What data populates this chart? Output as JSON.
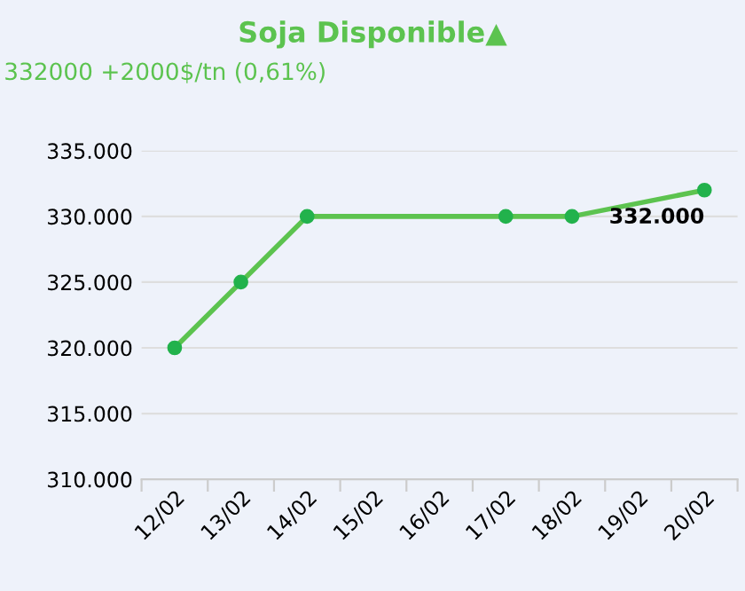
{
  "chart_data": {
    "type": "line",
    "title": "Soja Disponible▲",
    "subtitle": "332000 +2000$/tn (0,61%)",
    "categories": [
      "12/02",
      "13/02",
      "14/02",
      "15/02",
      "16/02",
      "17/02",
      "18/02",
      "19/02",
      "20/02"
    ],
    "series": [
      {
        "color": "#5cc34f",
        "values": [
          320000,
          325000,
          330000,
          null,
          null,
          330000,
          330000,
          null,
          332000
        ],
        "value_labels": [
          null,
          null,
          null,
          null,
          null,
          null,
          null,
          null,
          "332.000"
        ]
      }
    ],
    "ylim": [
      310000,
      335000
    ],
    "yticks": [
      {
        "value": 310000,
        "label": "310.000"
      },
      {
        "value": 315000,
        "label": "315.000"
      },
      {
        "value": 320000,
        "label": "320.000"
      },
      {
        "value": 325000,
        "label": "325.000"
      },
      {
        "value": 330000,
        "label": "330.000"
      },
      {
        "value": 335000,
        "label": "335.000"
      }
    ],
    "grid": "y",
    "marker": "circle",
    "line_style": "solid",
    "legend": false
  }
}
